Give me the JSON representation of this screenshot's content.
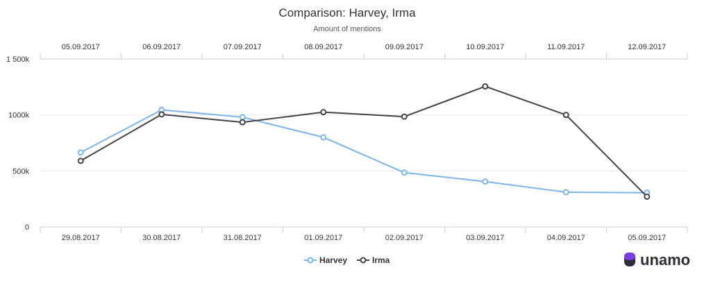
{
  "chart_data": {
    "type": "line",
    "title": "Comparison: Harvey, Irma",
    "subtitle": "Amount of mentions",
    "y_ticks": [
      "0",
      "500k",
      "1000k",
      "1 500k"
    ],
    "ylim": [
      0,
      1500000
    ],
    "grid": true,
    "legend_position": "bottom-center",
    "series": [
      {
        "name": "Harvey",
        "color": "#7cb5ec",
        "x": [
          "29.08.2017",
          "30.08.2017",
          "31.08.2017",
          "01.09.2017",
          "02.09.2017",
          "03.09.2017",
          "04.09.2017",
          "05.09.2017"
        ],
        "values": [
          665000,
          1045000,
          980000,
          800000,
          485000,
          405000,
          310000,
          305000
        ]
      },
      {
        "name": "Irma",
        "color": "#434348",
        "x": [
          "05.09.2017",
          "06.09.2017",
          "07.09.2017",
          "08.09.2017",
          "09.09.2017",
          "10.09.2017",
          "11.09.2017",
          "12.09.2017"
        ],
        "values": [
          590000,
          1005000,
          935000,
          1025000,
          985000,
          1255000,
          1000000,
          270000
        ]
      }
    ]
  },
  "branding": {
    "logo_text": "unamo",
    "logo_color": "#7b3fe4"
  }
}
